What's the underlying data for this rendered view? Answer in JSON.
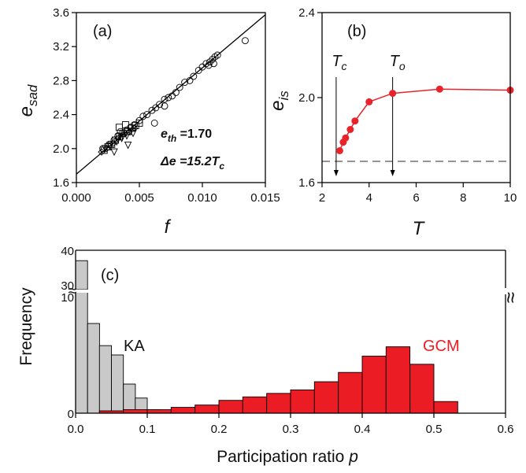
{
  "chart_data": [
    {
      "panel": "(a)",
      "type": "scatter",
      "xlabel": "f",
      "ylabel_main": "e",
      "ylabel_sub": "sad",
      "xlim": [
        0,
        0.015
      ],
      "ylim": [
        1.6,
        3.6
      ],
      "xticks": [
        "0.000",
        "0.005",
        "0.010",
        "0.015"
      ],
      "yticks": [
        "1.6",
        "2.0",
        "2.4",
        "2.8",
        "3.2",
        "3.6"
      ],
      "fit_line": {
        "intercept": 1.7,
        "slope": 125.0
      },
      "annotation_1": {
        "prefix": "e",
        "sub": "th",
        "rest": " =1.70"
      },
      "annotation_2": {
        "prefix": "Δe =15.2T",
        "sub": "c"
      },
      "series": [
        {
          "marker": "circle",
          "points": [
            [
              0.0021,
              2.0
            ],
            [
              0.0026,
              2.05
            ],
            [
              0.003,
              2.1
            ],
            [
              0.0033,
              2.15
            ],
            [
              0.0035,
              2.2
            ],
            [
              0.0038,
              2.18
            ],
            [
              0.004,
              2.22
            ],
            [
              0.0043,
              2.25
            ],
            [
              0.0046,
              2.28
            ],
            [
              0.005,
              2.33
            ],
            [
              0.0053,
              2.38
            ],
            [
              0.0056,
              2.4
            ],
            [
              0.006,
              2.45
            ],
            [
              0.0063,
              2.48
            ],
            [
              0.0066,
              2.52
            ],
            [
              0.007,
              2.58
            ],
            [
              0.0073,
              2.6
            ],
            [
              0.0076,
              2.62
            ],
            [
              0.0079,
              2.66
            ],
            [
              0.0082,
              2.72
            ],
            [
              0.0086,
              2.78
            ],
            [
              0.009,
              2.8
            ],
            [
              0.0093,
              2.85
            ],
            [
              0.0097,
              2.92
            ],
            [
              0.01,
              2.96
            ],
            [
              0.0103,
              3.0
            ],
            [
              0.0106,
              3.02
            ],
            [
              0.0108,
              3.05
            ],
            [
              0.011,
              3.08
            ],
            [
              0.0112,
              3.1
            ],
            [
              0.0105,
              2.98
            ],
            [
              0.0109,
              3.0
            ],
            [
              0.0134,
              3.27
            ],
            [
              0.0062,
              2.3
            ],
            [
              0.007,
              2.5
            ]
          ]
        },
        {
          "marker": "square",
          "points": [
            [
              0.0022,
              1.98
            ],
            [
              0.0025,
              2.02
            ],
            [
              0.0028,
              2.05
            ],
            [
              0.0031,
              2.1
            ],
            [
              0.0034,
              2.14
            ],
            [
              0.0037,
              2.18
            ],
            [
              0.0041,
              2.2
            ],
            [
              0.0044,
              2.24
            ],
            [
              0.0047,
              2.27
            ],
            [
              0.005,
              2.3
            ],
            [
              0.0034,
              2.25
            ],
            [
              0.0039,
              2.28
            ]
          ]
        },
        {
          "marker": "triangle-down",
          "points": [
            [
              0.0023,
              2.0
            ],
            [
              0.0027,
              2.03
            ],
            [
              0.0032,
              2.08
            ],
            [
              0.0036,
              2.12
            ],
            [
              0.004,
              2.15
            ],
            [
              0.0045,
              2.18
            ],
            [
              0.003,
              1.96
            ],
            [
              0.0041,
              2.04
            ]
          ]
        },
        {
          "marker": "diamond",
          "points": [
            [
              0.002,
              1.96
            ],
            [
              0.0024,
              2.0
            ],
            [
              0.0029,
              2.06
            ],
            [
              0.0033,
              2.12
            ],
            [
              0.0037,
              2.16
            ],
            [
              0.0042,
              2.2
            ],
            [
              0.0046,
              2.24
            ]
          ]
        }
      ]
    },
    {
      "panel": "(b)",
      "type": "line",
      "xlabel": "T",
      "ylabel_main": "e",
      "ylabel_sub": "is",
      "xlim": [
        2,
        10
      ],
      "ylim": [
        1.6,
        2.4
      ],
      "xticks": [
        "2",
        "4",
        "6",
        "8",
        "10"
      ],
      "yticks": [
        "1.6",
        "2.0",
        "2.4"
      ],
      "color": "#e8232a",
      "x": [
        2.75,
        2.9,
        3.0,
        3.2,
        3.4,
        4.0,
        5.0,
        7.0,
        10.0
      ],
      "y": [
        1.75,
        1.79,
        1.81,
        1.85,
        1.89,
        1.98,
        2.02,
        2.04,
        2.035
      ],
      "dashed_level": 1.7,
      "markers": [
        {
          "label": "T",
          "sub": "c",
          "x": 2.6
        },
        {
          "label": "T",
          "sub": "o",
          "x": 5.0
        }
      ]
    },
    {
      "panel": "(c)",
      "type": "bar",
      "xlabel_prefix": "Participation ratio ",
      "xlabel_var": "p",
      "ylabel": "Frequency",
      "xlim": [
        0,
        0.6
      ],
      "xticks": [
        "0.0",
        "0.1",
        "0.2",
        "0.3",
        "0.4",
        "0.5",
        "0.6"
      ],
      "yticks_lower": [
        "0",
        "10"
      ],
      "yticks_upper": [
        "30",
        "40"
      ],
      "break_marker": "≈",
      "series": [
        {
          "name": "KA",
          "color": "#c9c9c9",
          "bin_width": 0.0167,
          "bins_start": [
            0.0,
            0.0167,
            0.0333,
            0.05,
            0.0667,
            0.0833,
            0.1
          ],
          "values": [
            37,
            7.7,
            5.8,
            5.0,
            2.5,
            1.3,
            0.3
          ]
        },
        {
          "name": "GCM",
          "color": "#ec1c24",
          "bin_width": 0.0333,
          "bins_start": [
            0.0333,
            0.0667,
            0.1,
            0.1333,
            0.1667,
            0.2,
            0.2333,
            0.2667,
            0.3,
            0.3333,
            0.3667,
            0.4,
            0.4333,
            0.4667,
            0.5
          ],
          "values": [
            0.2,
            0.3,
            0.3,
            0.5,
            0.7,
            1.1,
            1.4,
            1.7,
            2.0,
            2.7,
            3.5,
            4.9,
            5.7,
            4.2,
            1.0
          ]
        }
      ]
    }
  ]
}
